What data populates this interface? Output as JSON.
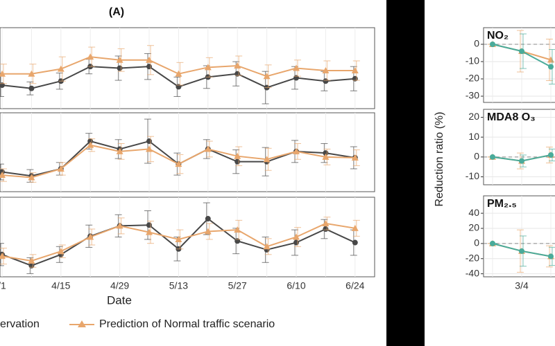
{
  "chart_data": [
    {
      "type": "line",
      "title": "(A)",
      "x_label": "Date",
      "categories": [
        "/1",
        null,
        "4/15",
        null,
        "4/29",
        null,
        "5/13",
        null,
        "5/27",
        null,
        "6/10",
        null,
        "6/24"
      ],
      "legend": [
        "ervation",
        "Prediction of Normal traffic scenario"
      ],
      "series_colors": [
        "#474747",
        "#e8a66c"
      ],
      "panels": [
        {
          "ylim": [
            0,
            100
          ],
          "series": [
            {
              "values": [
                29,
                25,
                34,
                52,
                50,
                52,
                27,
                39,
                43,
                26,
                38,
                34,
                37
              ],
              "errors": [
                14,
                8,
                10,
                9,
                15,
                16,
                12,
                14,
                15,
                20,
                14,
                12,
                15
              ]
            },
            {
              "values": [
                43,
                43,
                49,
                64,
                60,
                60,
                43,
                51,
                53,
                40,
                50,
                47,
                47
              ],
              "errors": [
                12,
                12,
                15,
                12,
                14,
                18,
                14,
                12,
                12,
                14,
                10,
                12,
                12
              ]
            }
          ]
        },
        {
          "ylim": [
            0,
            100
          ],
          "series": [
            {
              "values": [
                25,
                20,
                29,
                64,
                54,
                64,
                35,
                54,
                38,
                38,
                51,
                49,
                43
              ],
              "errors": [
                10,
                8,
                8,
                10,
                12,
                28,
                14,
                12,
                15,
                18,
                14,
                12,
                14
              ]
            },
            {
              "values": [
                21,
                18,
                29,
                59,
                51,
                54,
                35,
                54,
                45,
                41,
                51,
                44,
                43
              ],
              "errors": [
                8,
                6,
                8,
                8,
                10,
                16,
                12,
                10,
                12,
                14,
                10,
                10,
                10
              ]
            }
          ]
        },
        {
          "ylim": [
            0,
            100
          ],
          "series": [
            {
              "values": [
                28,
                14,
                28,
                51,
                64,
                65,
                35,
                73,
                45,
                34,
                43,
                60,
                43
              ],
              "errors": [
                14,
                10,
                10,
                14,
                14,
                18,
                15,
                20,
                16,
                16,
                16,
                12,
                16
              ]
            },
            {
              "values": [
                26,
                20,
                32,
                50,
                64,
                56,
                47,
                57,
                59,
                38,
                50,
                67,
                61
              ],
              "errors": [
                10,
                8,
                8,
                10,
                10,
                14,
                12,
                10,
                12,
                10,
                12,
                8,
                10
              ]
            }
          ]
        }
      ]
    },
    {
      "type": "line",
      "y_label": "Reduction ratio (%)",
      "categories": [
        null,
        "3/4",
        null
      ],
      "series_colors": [
        "#e8a66c",
        "#4aab9a"
      ],
      "panels": [
        {
          "label": "NO₂",
          "ylim": [
            -33.6,
            9.6
          ],
          "yticks": [
            0,
            -10,
            -20,
            -30
          ],
          "reference_line": 0,
          "series": [
            {
              "values": [
                0,
                -4,
                -9
              ],
              "errors": [
                0,
                12,
                12
              ]
            },
            {
              "values": [
                0,
                -4,
                -13
              ],
              "errors": [
                0,
                10,
                10
              ]
            }
          ]
        },
        {
          "label": "MDA8 O₃",
          "ylim": [
            -14,
            24
          ],
          "yticks": [
            20,
            10,
            0,
            -10
          ],
          "reference_line": 0,
          "series": [
            {
              "values": [
                0,
                -2,
                1
              ],
              "errors": [
                0,
                4,
                4
              ]
            },
            {
              "values": [
                0,
                -2,
                1
              ],
              "errors": [
                0,
                3,
                3
              ]
            }
          ]
        },
        {
          "label": "PM₂.₅",
          "ylim": [
            -44,
            63
          ],
          "yticks": [
            40,
            20,
            0,
            -20,
            -40
          ],
          "reference_line": 0,
          "series": [
            {
              "values": [
                0,
                -10,
                -17
              ],
              "errors": [
                0,
                28,
                14
              ]
            },
            {
              "values": [
                0,
                -10,
                -17
              ],
              "errors": [
                0,
                20,
                12
              ]
            }
          ]
        }
      ]
    }
  ]
}
